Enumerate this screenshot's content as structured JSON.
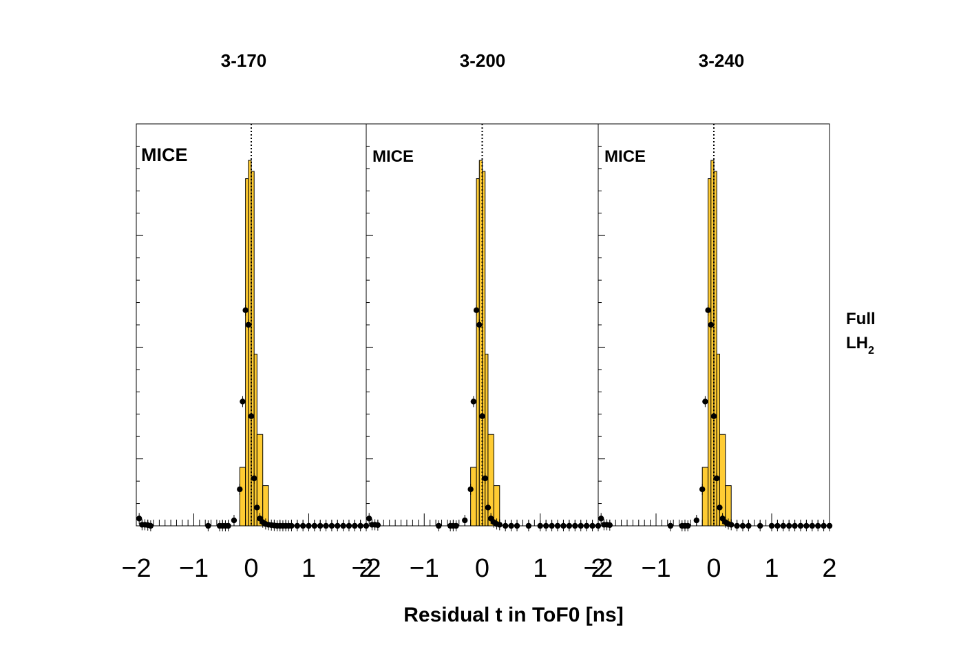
{
  "figure": {
    "xlabel": "Residual t in ToF0 [ns]",
    "side_label": {
      "line1": "Full",
      "line2_main": "LH",
      "line2_sub": "2"
    },
    "colors": {
      "histogram_fill": "#ffcc33",
      "outline": "#000000",
      "markers": "#000000"
    }
  },
  "chart_data": [
    {
      "type": "bar",
      "title": "3-170",
      "watermark": "MICE",
      "xlim": [
        -2,
        2
      ],
      "xticks": [
        "−2",
        "−1",
        "0",
        "1",
        "2"
      ],
      "bin_width": 0.1,
      "reference_line_x": 0,
      "histogram": {
        "bin_edges": [
          -0.2,
          -0.1,
          -0.05,
          0.0,
          0.05,
          0.1,
          0.2,
          0.3
        ],
        "values": [
          0.16,
          0.95,
          1.0,
          0.97,
          0.47,
          0.25,
          0.11
        ]
      },
      "points": {
        "x": [
          -1.95,
          -1.9,
          -1.85,
          -1.8,
          -1.75,
          -0.75,
          -0.55,
          -0.5,
          -0.45,
          -0.4,
          -0.3,
          -0.2,
          -0.15,
          -0.1,
          -0.05,
          0.0,
          0.05,
          0.1,
          0.15,
          0.2,
          0.25,
          0.3,
          0.35,
          0.4,
          0.45,
          0.5,
          0.55,
          0.6,
          0.65,
          0.7,
          0.8,
          0.9,
          1.0,
          1.1,
          1.2,
          1.3,
          1.4,
          1.5,
          1.6,
          1.7,
          1.8,
          1.9,
          2.0
        ],
        "y": [
          0.02,
          0.003,
          0.003,
          0.002,
          0.0,
          0.0,
          0.0,
          0.0,
          0.0,
          0.0,
          0.015,
          0.1,
          0.34,
          0.59,
          0.55,
          0.3,
          0.13,
          0.05,
          0.02,
          0.01,
          0.005,
          0.003,
          0.002,
          0.001,
          0.0,
          0.0,
          0.0,
          0.0,
          0.0,
          0.0,
          0.0,
          0.0,
          0.0,
          0.0,
          0.0,
          0.0,
          0.0,
          0.0,
          0.0,
          0.0,
          0.0,
          0.0,
          0.0
        ]
      }
    },
    {
      "type": "bar",
      "title": "3-200",
      "watermark": "MICE",
      "xlim": [
        -2,
        2
      ],
      "xticks": [
        "−2",
        "−1",
        "0",
        "1",
        "2"
      ],
      "bin_width": 0.1,
      "reference_line_x": 0,
      "histogram": {
        "bin_edges": [
          -0.2,
          -0.1,
          -0.05,
          0.0,
          0.05,
          0.1,
          0.2,
          0.3
        ],
        "values": [
          0.16,
          0.95,
          1.0,
          0.97,
          0.47,
          0.25,
          0.11
        ]
      },
      "points": {
        "x": [
          -1.95,
          -1.9,
          -1.85,
          -1.8,
          -0.75,
          -0.55,
          -0.5,
          -0.45,
          -0.3,
          -0.2,
          -0.15,
          -0.1,
          -0.05,
          0.0,
          0.05,
          0.1,
          0.15,
          0.2,
          0.25,
          0.3,
          0.4,
          0.5,
          0.6,
          0.8,
          1.0,
          1.1,
          1.2,
          1.3,
          1.4,
          1.5,
          1.6,
          1.7,
          1.8,
          1.9,
          2.0
        ],
        "y": [
          0.02,
          0.003,
          0.003,
          0.002,
          0.0,
          0.0,
          0.0,
          0.0,
          0.015,
          0.1,
          0.34,
          0.59,
          0.55,
          0.3,
          0.13,
          0.05,
          0.02,
          0.01,
          0.005,
          0.003,
          0.0,
          0.0,
          0.0,
          0.0,
          0.0,
          0.0,
          0.0,
          0.0,
          0.0,
          0.0,
          0.0,
          0.0,
          0.0,
          0.0,
          0.0
        ]
      }
    },
    {
      "type": "bar",
      "title": "3-240",
      "watermark": "MICE",
      "xlim": [
        -2,
        2
      ],
      "xticks": [
        "−2",
        "−1",
        "0",
        "1",
        "2"
      ],
      "bin_width": 0.1,
      "reference_line_x": 0,
      "histogram": {
        "bin_edges": [
          -0.2,
          -0.1,
          -0.05,
          0.0,
          0.05,
          0.1,
          0.2,
          0.3
        ],
        "values": [
          0.16,
          0.95,
          1.0,
          0.97,
          0.47,
          0.25,
          0.11
        ]
      },
      "points": {
        "x": [
          -1.95,
          -1.9,
          -1.85,
          -1.8,
          -0.75,
          -0.55,
          -0.5,
          -0.45,
          -0.3,
          -0.2,
          -0.15,
          -0.1,
          -0.05,
          0.0,
          0.05,
          0.1,
          0.15,
          0.2,
          0.25,
          0.3,
          0.4,
          0.5,
          0.6,
          0.8,
          1.0,
          1.1,
          1.2,
          1.3,
          1.4,
          1.5,
          1.6,
          1.7,
          1.8,
          1.9,
          2.0
        ],
        "y": [
          0.02,
          0.003,
          0.003,
          0.002,
          0.0,
          0.0,
          0.0,
          0.0,
          0.015,
          0.1,
          0.34,
          0.59,
          0.55,
          0.3,
          0.13,
          0.05,
          0.02,
          0.01,
          0.005,
          0.003,
          0.0,
          0.0,
          0.0,
          0.0,
          0.0,
          0.0,
          0.0,
          0.0,
          0.0,
          0.0,
          0.0,
          0.0,
          0.0,
          0.0,
          0.0
        ]
      }
    }
  ]
}
